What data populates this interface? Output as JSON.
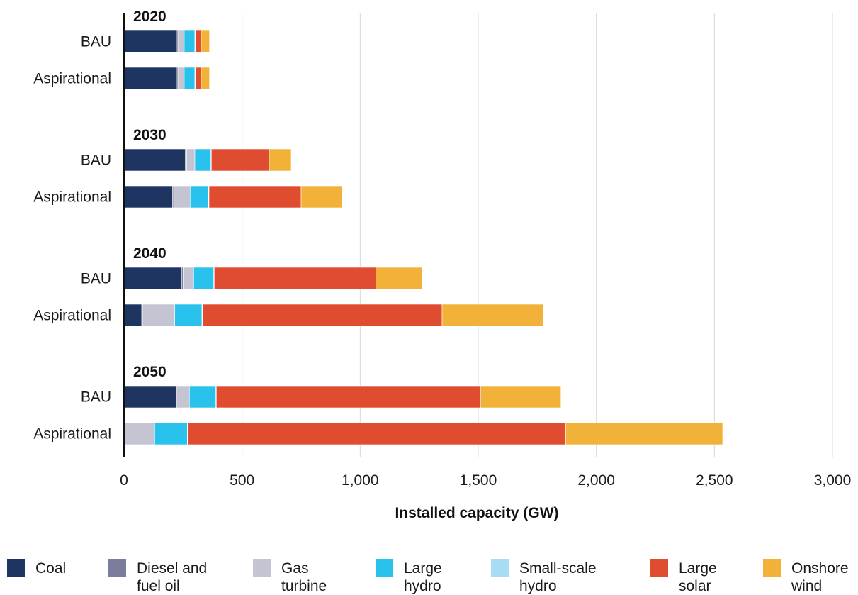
{
  "chart_data": {
    "type": "bar",
    "orientation": "horizontal",
    "stacked": true,
    "title": "",
    "xlabel": "Installed capacity (GW)",
    "ylabel": "",
    "xlim": [
      0,
      3000
    ],
    "x_ticks": [
      0,
      500,
      1000,
      1500,
      2000,
      2500,
      3000
    ],
    "x_tick_labels": [
      "0",
      "500",
      "1,000",
      "1,500",
      "2,000",
      "2,500",
      "3,000"
    ],
    "grid": "vertical",
    "legend_position": "bottom",
    "groups": [
      {
        "year": "2020",
        "bars": [
          {
            "label": "BAU",
            "values": [
              225,
              5,
              25,
              45,
              2,
              25,
              35
            ]
          },
          {
            "label": "Aspirational",
            "values": [
              225,
              5,
              25,
              45,
              2,
              25,
              35
            ]
          }
        ]
      },
      {
        "year": "2030",
        "bars": [
          {
            "label": "BAU",
            "values": [
              260,
              5,
              35,
              68,
              2,
              245,
              93
            ]
          },
          {
            "label": "Aspirational",
            "values": [
              205,
              5,
              70,
              78,
              2,
              390,
              175
            ]
          }
        ]
      },
      {
        "year": "2040",
        "bars": [
          {
            "label": "BAU",
            "values": [
              245,
              5,
              45,
              85,
              2,
              685,
              195
            ]
          },
          {
            "label": "Aspirational",
            "values": [
              75,
              5,
              135,
              115,
              2,
              1015,
              428
            ]
          }
        ]
      },
      {
        "year": "2050",
        "bars": [
          {
            "label": "BAU",
            "values": [
              220,
              2,
              55,
              112,
              2,
              1120,
              339
            ]
          },
          {
            "label": "Aspirational",
            "values": [
              0,
              0,
              130,
              138,
              2,
              1600,
              665
            ]
          }
        ]
      }
    ],
    "series": [
      {
        "name": "Coal",
        "label_lines": [
          "Coal"
        ],
        "color": "#1e3461"
      },
      {
        "name": "Diesel and fuel oil",
        "label_lines": [
          "Diesel and",
          "fuel oil"
        ],
        "color": "#7c7c9c"
      },
      {
        "name": "Gas turbine",
        "label_lines": [
          "Gas",
          "turbine"
        ],
        "color": "#c4c4d2"
      },
      {
        "name": "Large hydro",
        "label_lines": [
          "Large",
          "hydro"
        ],
        "color": "#28c2ec"
      },
      {
        "name": "Small-scale hydro",
        "label_lines": [
          "Small-scale",
          "hydro"
        ],
        "color": "#a8dcf4"
      },
      {
        "name": "Large solar",
        "label_lines": [
          "Large",
          "solar"
        ],
        "color": "#e04c30"
      },
      {
        "name": "Onshore wind",
        "label_lines": [
          "Onshore",
          "wind"
        ],
        "color": "#f2b23a"
      }
    ]
  }
}
